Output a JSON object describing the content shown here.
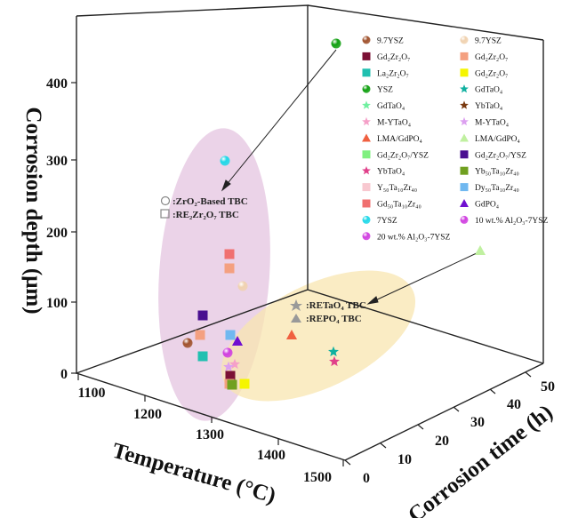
{
  "chart_data": {
    "type": "scatter3d",
    "title": "",
    "xlabel": "Temperature (°C)",
    "ylabel": "Corrosion time (h)",
    "zlabel": "Corrosion depth (μm)",
    "xlim": [
      1100,
      1500
    ],
    "ylim": [
      0,
      55
    ],
    "zlim": [
      0,
      450
    ],
    "xticks": [
      "1100",
      "1200",
      "1300",
      "1400",
      "1500"
    ],
    "yticks": [
      "0",
      "10",
      "20",
      "30",
      "40",
      "50"
    ],
    "zticks": [
      "0",
      "100",
      "200",
      "300",
      "400"
    ],
    "legend_entries": [
      {
        "label": "9.7YSZ",
        "marker": "sphere",
        "color": "#a0522d"
      },
      {
        "label": "9.7YSZ",
        "marker": "sphere",
        "color": "#f0d2b0"
      },
      {
        "label": "Gd₂Zr₂O₇",
        "marker": "square",
        "color": "#7b1034"
      },
      {
        "label": "Gd₂Zr₂O₇",
        "marker": "square",
        "color": "#f4a080"
      },
      {
        "label": "La₂Zr₂O₇",
        "marker": "square",
        "color": "#20c0b0"
      },
      {
        "label": "Gd₂Zr₂O₇",
        "marker": "square",
        "color": "#f5f500"
      },
      {
        "label": "YSZ",
        "marker": "sphere",
        "color": "#10a010"
      },
      {
        "label": "GdTaO₄",
        "marker": "star",
        "color": "#10b0a0"
      },
      {
        "label": "GdTaO₄",
        "marker": "star",
        "color": "#70f0a0"
      },
      {
        "label": "YbTaO₄",
        "marker": "star",
        "color": "#7a3a10"
      },
      {
        "label": "M-YTaO₄",
        "marker": "star",
        "color": "#f5a0c8"
      },
      {
        "label": "M-YTaO₄",
        "marker": "star",
        "color": "#dca0f0"
      },
      {
        "label": "LMA/GdPO₄",
        "marker": "triangle",
        "color": "#f06040"
      },
      {
        "label": "LMA/GdPO₄",
        "marker": "triangle",
        "color": "#c0f0a0"
      },
      {
        "label": "Gd₂Zr₂O₇/YSZ",
        "marker": "square",
        "color": "#80f080"
      },
      {
        "label": "Gd₂Zr₂O₇/YSZ",
        "marker": "square",
        "color": "#4a1090"
      },
      {
        "label": "YbTaO₄",
        "marker": "star",
        "color": "#e0408a"
      },
      {
        "label": "Yb₅₀Ta₁₀Zr₄₀",
        "marker": "square",
        "color": "#70a020"
      },
      {
        "label": "Y₅₀Ta₁₀Zr₄₀",
        "marker": "square",
        "color": "#f8c8d0"
      },
      {
        "label": "Dy₅₀Ta₁₀Zr₄₀",
        "marker": "square",
        "color": "#70b8f0"
      },
      {
        "label": "Gd₅₀Ta₁₀Zr₄₀",
        "marker": "square",
        "color": "#f07070"
      },
      {
        "label": "GdPO₄",
        "marker": "triangle",
        "color": "#7010d0"
      },
      {
        "label": "7YSZ",
        "marker": "sphere",
        "color": "#20d8e8"
      },
      {
        "label": "10 wt.% Al₂O₃-7YSZ",
        "marker": "sphere",
        "color": "#d040e0"
      },
      {
        "label": "20 wt.% Al₂O₃-7YSZ",
        "marker": "sphere",
        "color": "#d040e0"
      }
    ],
    "annotations": {
      "zro2_circle": ":ZrO₂-Based TBC",
      "zro2_square": ":RE₂Zr₂O₇ TBC",
      "re_star": ":RETaO₄ TBC",
      "re_triangle": ":REPO₄ TBC"
    },
    "points": [
      {
        "series": "YSZ",
        "x": 1500,
        "y": 50,
        "z": 445,
        "marker": "sphere",
        "color": "#10a010"
      },
      {
        "series": "7YSZ",
        "x": 1200,
        "y": 5,
        "z": 295,
        "marker": "sphere",
        "color": "#20d8e8"
      },
      {
        "series": "Gd₅₀Ta₁₀Zr₄₀",
        "x": 1300,
        "y": 4,
        "z": 172,
        "marker": "square",
        "color": "#f07070"
      },
      {
        "series": "Gd₂Zr₂O₇",
        "x": 1300,
        "y": 4,
        "z": 150,
        "marker": "square",
        "color": "#f4a080"
      },
      {
        "series": "9.7YSZ",
        "x": 1300,
        "y": 12,
        "z": 125,
        "marker": "sphere",
        "color": "#f0d2b0"
      },
      {
        "series": "Gd₂Zr₂O₇/YSZ",
        "x": 1200,
        "y": 8,
        "z": 85,
        "marker": "square",
        "color": "#4a1090"
      },
      {
        "series": "Gd₂Zr₂O₇",
        "x": 1200,
        "y": 8,
        "z": 58,
        "marker": "square",
        "color": "#f4a080"
      },
      {
        "series": "9.7YSZ",
        "x": 1150,
        "y": 8,
        "z": 45,
        "marker": "sphere",
        "color": "#a0522d"
      },
      {
        "series": "La₂Zr₂O₇",
        "x": 1200,
        "y": 4,
        "z": 28,
        "marker": "square",
        "color": "#20c0b0"
      },
      {
        "series": "Dy₅₀Ta₁₀Zr₄₀",
        "x": 1300,
        "y": 8,
        "z": 58,
        "marker": "square",
        "color": "#70b8f0"
      },
      {
        "series": "GdPO₄",
        "x": 1300,
        "y": 10,
        "z": 48,
        "marker": "triangle",
        "color": "#7010d0"
      },
      {
        "series": "10 wt.% Al₂O₃-7YSZ",
        "x": 1300,
        "y": 4,
        "z": 35,
        "marker": "sphere",
        "color": "#d040e0"
      },
      {
        "series": "M-YTaO₄",
        "x": 1300,
        "y": 4,
        "z": 15,
        "marker": "star",
        "color": "#f5a0c8"
      },
      {
        "series": "M-YTaO₄",
        "x": 1300,
        "y": 4,
        "z": 8,
        "marker": "star",
        "color": "#dca0f0"
      },
      {
        "series": "Gd₂Zr₂O₇",
        "x": 1300,
        "y": 4,
        "z": 2,
        "marker": "square",
        "color": "#7b1034"
      },
      {
        "series": "Gd₂Zr₂O₇",
        "x": 1300,
        "y": 4,
        "z": -12,
        "marker": "square",
        "color": "#f4a080"
      },
      {
        "series": "Yb₅₀Ta₁₀Zr₄₀",
        "x": 1300,
        "y": 4,
        "z": -18,
        "marker": "square",
        "color": "#70a020"
      },
      {
        "series": "Gd₂Zr₂O₇",
        "x": 1300,
        "y": 8,
        "z": -18,
        "marker": "square",
        "color": "#f5f500"
      },
      {
        "series": "LMA/GdPO₄",
        "x": 1300,
        "y": 20,
        "z": 60,
        "marker": "triangle",
        "color": "#f06040"
      },
      {
        "series": "GdTaO₄",
        "x": 1300,
        "y": 30,
        "z": 35,
        "marker": "star",
        "color": "#10b0a0"
      },
      {
        "series": "YbTaO₄",
        "x": 1300,
        "y": 30,
        "z": 20,
        "marker": "star",
        "color": "#e0408a"
      },
      {
        "series": "LMA/GdPO₄",
        "x": 1300,
        "y": 50,
        "z": 175,
        "marker": "triangle",
        "color": "#c0f0a0"
      }
    ]
  }
}
